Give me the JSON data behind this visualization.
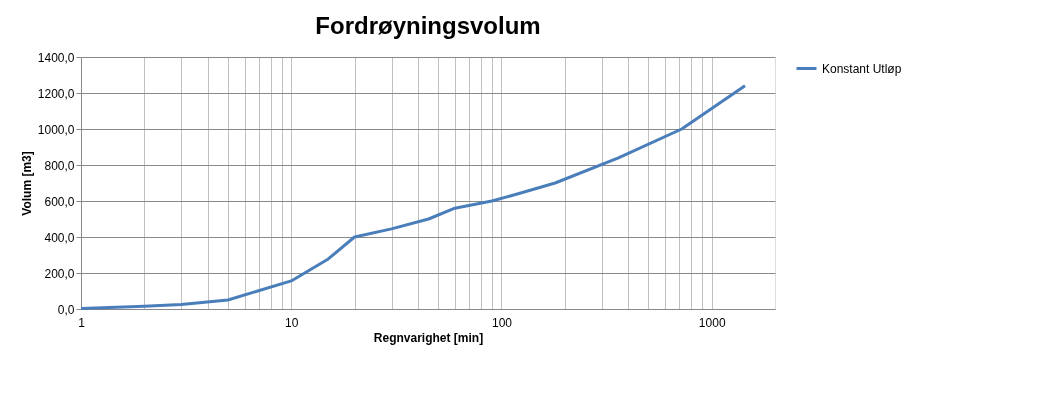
{
  "chart_data": {
    "type": "line",
    "title": "Fordrøyningsvolum",
    "xlabel": "Regnvarighet [min]",
    "ylabel": "Volum [m3]",
    "x": [
      1,
      2,
      3,
      5,
      10,
      15,
      20,
      30,
      45,
      60,
      90,
      120,
      180,
      360,
      720,
      1440
    ],
    "series": [
      {
        "name": "Konstant Utløp",
        "color": "#4a7ebb",
        "values": [
          3,
          15,
          25,
          50,
          156,
          278,
          400,
          445,
          500,
          560,
          600,
          640,
          700,
          840,
          1000,
          1240
        ]
      }
    ],
    "log": "x",
    "xlim": [
      1,
      2000
    ],
    "xticks": [
      1,
      {
        "value": 2,
        "label": null
      },
      {
        "value": 3,
        "label": null
      },
      {
        "value": 4,
        "label": null
      },
      {
        "value": 5,
        "label": null
      },
      {
        "value": 6,
        "label": null
      },
      {
        "value": 7,
        "label": null
      },
      {
        "value": 8,
        "label": null
      },
      {
        "value": 9,
        "label": null
      },
      10,
      {
        "value": 20,
        "label": null
      },
      {
        "value": 30,
        "label": null
      },
      {
        "value": 40,
        "label": null
      },
      {
        "value": 50,
        "label": null
      },
      {
        "value": 60,
        "label": null
      },
      {
        "value": 70,
        "label": null
      },
      {
        "value": 80,
        "label": null
      },
      {
        "value": 90,
        "label": null
      },
      100,
      {
        "value": 200,
        "label": null
      },
      {
        "value": 300,
        "label": null
      },
      {
        "value": 400,
        "label": null
      },
      {
        "value": 500,
        "label": null
      },
      {
        "value": 600,
        "label": null
      },
      {
        "value": 700,
        "label": null
      },
      {
        "value": 800,
        "label": null
      },
      {
        "value": 900,
        "label": null
      },
      1000
    ],
    "ylim": [
      0,
      1400
    ],
    "yticks": [
      {
        "value": 0,
        "label": "0,0"
      },
      {
        "value": 200,
        "label": "200,0"
      },
      {
        "value": 400,
        "label": "400,0"
      },
      {
        "value": 600,
        "label": "600,0"
      },
      {
        "value": 800,
        "label": "800,0"
      },
      {
        "value": 1000,
        "label": "1000,0"
      },
      {
        "value": 1200,
        "label": "1200,0"
      },
      {
        "value": 1400,
        "label": "1400,0"
      }
    ],
    "grid": true,
    "legend": "right",
    "marker": "none",
    "line_style": "solid"
  }
}
